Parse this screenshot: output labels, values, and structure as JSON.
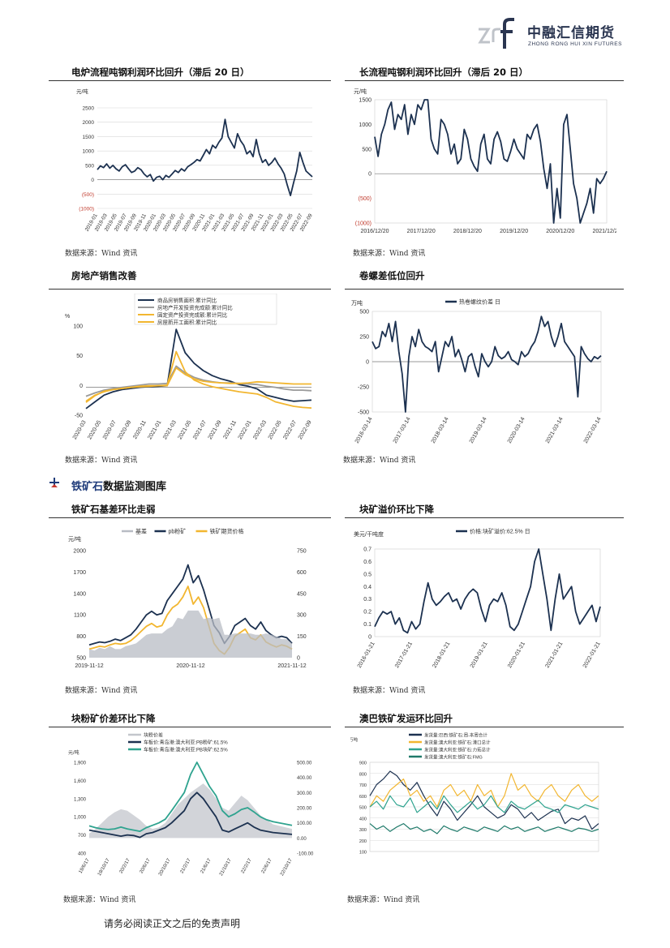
{
  "brand": {
    "name_cn": "中融汇信期货",
    "name_en": "ZHONG RONG HUI XIN FUTURES"
  },
  "section": {
    "title_a": "铁矿石",
    "title_b": "数据监测图库"
  },
  "source_label": "数据来源：Wind 资讯",
  "footer": "请务必阅读正文之后的免责声明",
  "charts": [
    {
      "id": "c1",
      "title": "电炉流程吨钢利润环比回升（滞后 20 日）"
    },
    {
      "id": "c2",
      "title": "长流程吨钢利润环比回升（滞后 20 日）"
    },
    {
      "id": "c3",
      "title": "房地产销售改善"
    },
    {
      "id": "c4",
      "title": "卷螺差低位回升"
    },
    {
      "id": "c5",
      "title": "铁矿石基差环比走弱"
    },
    {
      "id": "c6",
      "title": "块矿溢价环比下降"
    },
    {
      "id": "c7",
      "title": "块粉矿价差环比下降"
    },
    {
      "id": "c8",
      "title": "澳巴铁矿发运环比回升"
    }
  ],
  "chart_data": [
    {
      "id": "c1",
      "type": "line",
      "ylabel": "元/吨",
      "yticks": [
        "2500",
        "2000",
        "1500",
        "1000",
        "500",
        "0",
        "(500)",
        "(1000)"
      ],
      "ylim": [
        -1000,
        2500
      ],
      "xticks": [
        "2019-01",
        "2019-03",
        "2019-05",
        "2019-07",
        "2019-09",
        "2019-11",
        "2020-01",
        "2020-03",
        "2020-05",
        "2020-07",
        "2020-09",
        "2020-11",
        "2021-01",
        "2021-03",
        "2021-05",
        "2021-07",
        "2021-09",
        "2021-11",
        "2022-01",
        "2022-03",
        "2022-05",
        "2022-07",
        "2022-09"
      ],
      "series": [
        {
          "color": "#1c3150",
          "values": [
            350,
            480,
            420,
            550,
            400,
            500,
            380,
            300,
            450,
            520,
            380,
            250,
            300,
            420,
            350,
            200,
            100,
            180,
            -50,
            80,
            120,
            0,
            150,
            80,
            200,
            320,
            250,
            380,
            300,
            450,
            520,
            600,
            700,
            650,
            850,
            1050,
            900,
            1200,
            1100,
            1300,
            1450,
            2100,
            1500,
            1300,
            1100,
            1600,
            1350,
            1200,
            900,
            1000,
            800,
            1400,
            900,
            600,
            700,
            500,
            600,
            750,
            550,
            400,
            200,
            -200,
            -550,
            -100,
            300,
            950,
            600,
            300,
            200,
            100
          ]
        }
      ]
    },
    {
      "id": "c2",
      "type": "line",
      "ylabel": "元/吨",
      "yticks": [
        "1500",
        "1000",
        "500",
        "0",
        "(500)",
        "(1000)"
      ],
      "ylim": [
        -1000,
        1500
      ],
      "xticks": [
        "2016/12/20",
        "2017/12/20",
        "2018/12/20",
        "2019/12/20",
        "2020/12/20",
        "2021/12/20"
      ],
      "series": [
        {
          "color": "#1c3150",
          "values": [
            750,
            350,
            800,
            1000,
            1300,
            1450,
            900,
            1200,
            1100,
            1400,
            800,
            1200,
            1000,
            1400,
            1300,
            1500,
            1500,
            700,
            500,
            400,
            1100,
            1000,
            800,
            400,
            600,
            200,
            300,
            900,
            700,
            300,
            150,
            50,
            600,
            800,
            300,
            200,
            700,
            850,
            650,
            300,
            250,
            450,
            700,
            500,
            400,
            300,
            800,
            700,
            900,
            1000,
            650,
            100,
            -300,
            200,
            -1000,
            -300,
            -900,
            1000,
            1200,
            500,
            -200,
            -500,
            -1000,
            -800,
            -600,
            -300,
            -800,
            -100,
            -200,
            -100,
            50
          ]
        }
      ]
    },
    {
      "id": "c3",
      "type": "line",
      "ylabel": "%",
      "yticks": [
        "100",
        "50",
        "0",
        "-50"
      ],
      "ylim": [
        -50,
        110
      ],
      "xticks": [
        "2020-03",
        "2020-05",
        "2020-07",
        "2020-09",
        "2020-11",
        "2021-01",
        "2021-03",
        "2021-05",
        "2021-07",
        "2021-09",
        "2021-11",
        "2022-01",
        "2022-03",
        "2022-05",
        "2022-07",
        "2022-09"
      ],
      "series": [
        {
          "name": "商品房销售面积:累计同比",
          "color": "#1c3150",
          "values": [
            -38,
            -26,
            -14,
            -8,
            -4,
            -2,
            0,
            1,
            2,
            3,
            104,
            62,
            43,
            30,
            21,
            15,
            11,
            5,
            2,
            -3,
            -14,
            -18,
            -22,
            -25,
            -24,
            -23
          ]
        },
        {
          "name": "房地产开发投资完成额:累计同比",
          "color": "#9a9a9a",
          "values": [
            -16,
            -10,
            -5,
            -2,
            0,
            2,
            4,
            6,
            6,
            7,
            38,
            26,
            18,
            13,
            10,
            8,
            8,
            7,
            6,
            5,
            2,
            0,
            -3,
            -5,
            -5,
            -6
          ]
        },
        {
          "name": "固定资产投资完成额:累计同比",
          "color": "#f2b630",
          "values": [
            -25,
            -14,
            -8,
            -4,
            -2,
            0,
            1,
            2,
            3,
            3,
            35,
            23,
            15,
            11,
            9,
            8,
            7,
            7,
            8,
            10,
            9,
            8,
            7,
            6,
            6,
            6
          ]
        },
        {
          "name": "房屋新开工面积:累计同比",
          "color": "#f2b630",
          "values": [
            -27,
            -15,
            -7,
            -4,
            -2,
            0,
            2,
            3,
            3,
            4,
            64,
            28,
            13,
            6,
            1,
            -2,
            -5,
            -8,
            -10,
            -12,
            -18,
            -26,
            -30,
            -34,
            -36,
            -37
          ]
        }
      ]
    },
    {
      "id": "c4",
      "type": "line",
      "ylabel": "万吨",
      "legend": [
        "热卷螺纹价差 日"
      ],
      "yticks": [
        "500",
        "250",
        "0",
        "-250",
        "-500"
      ],
      "ylim": [
        -500,
        500
      ],
      "xticks": [
        "2016-03-14",
        "2017-03-14",
        "2018-03-14",
        "2019-03-14",
        "2020-03-14",
        "2021-03-14",
        "2022-03-14"
      ],
      "series": [
        {
          "name": "热卷螺纹价差 日",
          "color": "#1c3150",
          "values": [
            200,
            130,
            150,
            300,
            250,
            380,
            200,
            400,
            100,
            -120,
            -500,
            50,
            250,
            150,
            320,
            200,
            150,
            130,
            100,
            200,
            -100,
            50,
            200,
            150,
            250,
            50,
            120,
            20,
            -100,
            50,
            80,
            -50,
            -150,
            80,
            0,
            -50,
            0,
            150,
            60,
            30,
            50,
            100,
            20,
            0,
            -30,
            100,
            50,
            80,
            150,
            200,
            300,
            450,
            350,
            400,
            250,
            150,
            250,
            380,
            200,
            150,
            100,
            50,
            -350,
            150,
            80,
            30,
            0,
            50,
            30,
            60
          ]
        }
      ]
    },
    {
      "id": "c5",
      "type": "line",
      "ylabel": "元/吨",
      "legend": [
        "基差",
        "pb粉矿",
        "铁矿期货价格"
      ],
      "yticks_left": [
        "2000",
        "1700",
        "1400",
        "1100",
        "800",
        "500"
      ],
      "ylim_left": [
        500,
        2000
      ],
      "yticks_right": [
        "750",
        "600",
        "450",
        "300",
        "150",
        "0"
      ],
      "ylim_right": [
        0,
        750
      ],
      "xticks": [
        "2019-11-12",
        "2020-11-12",
        "2021-11-12"
      ],
      "series": [
        {
          "name": "pb粉矿",
          "color": "#1c3150",
          "values": [
            680,
            700,
            720,
            710,
            730,
            760,
            740,
            780,
            820,
            900,
            1000,
            1100,
            1150,
            1100,
            1120,
            1300,
            1400,
            1500,
            1600,
            1800,
            1550,
            1650,
            1450,
            1200,
            950,
            850,
            700,
            800,
            950,
            1000,
            1050,
            950,
            900,
            1000,
            880,
            820,
            780,
            800,
            780,
            700
          ]
        },
        {
          "name": "铁矿期货价格",
          "color": "#f2b630",
          "values": [
            620,
            640,
            660,
            650,
            680,
            700,
            690,
            700,
            740,
            800,
            870,
            940,
            980,
            930,
            950,
            1100,
            1200,
            1250,
            1350,
            1500,
            1250,
            1350,
            1200,
            950,
            700,
            600,
            550,
            650,
            800,
            850,
            900,
            780,
            750,
            820,
            720,
            680,
            650,
            680,
            660,
            620
          ]
        },
        {
          "name": "基差",
          "color": "#b8bcc4",
          "values": [
            60,
            50,
            70,
            60,
            80,
            60,
            60,
            80,
            90,
            100,
            130,
            160,
            170,
            170,
            170,
            200,
            220,
            280,
            270,
            330,
            330,
            330,
            270,
            280,
            270,
            280,
            160,
            160,
            170,
            170,
            170,
            170,
            160,
            160,
            170,
            160,
            150,
            130,
            130,
            100
          ]
        }
      ]
    },
    {
      "id": "c6",
      "type": "line",
      "ylabel": "美元/干吨度",
      "legend": [
        "价格:块矿溢价:62.5% 日"
      ],
      "yticks": [
        "0.7",
        "0.6",
        "0.5",
        "0.4",
        "0.3",
        "0.2",
        "0.1",
        "0"
      ],
      "ylim": [
        0,
        0.7
      ],
      "xticks": [
        "2016-01-21",
        "2017-01-21",
        "2018-01-21",
        "2019-01-21",
        "2020-01-21",
        "2021-01-21",
        "2022-01-21"
      ],
      "series": [
        {
          "name": "价格:块矿溢价:62.5% 日",
          "color": "#1c3150",
          "values": [
            0.08,
            0.15,
            0.2,
            0.18,
            0.2,
            0.1,
            0.15,
            0.05,
            0.03,
            0.12,
            0.06,
            0.1,
            0.28,
            0.43,
            0.3,
            0.25,
            0.28,
            0.32,
            0.35,
            0.28,
            0.3,
            0.22,
            0.3,
            0.35,
            0.38,
            0.35,
            0.22,
            0.12,
            0.25,
            0.3,
            0.28,
            0.35,
            0.25,
            0.08,
            0.05,
            0.1,
            0.2,
            0.3,
            0.4,
            0.6,
            0.7,
            0.5,
            0.3,
            0.05,
            0.3,
            0.5,
            0.3,
            0.35,
            0.4,
            0.2,
            0.1,
            0.15,
            0.2,
            0.25,
            0.12,
            0.24
          ]
        }
      ]
    },
    {
      "id": "c7",
      "type": "line",
      "ylabel": "元/吨",
      "legend": [
        "块粉价差",
        "车板价:青岛港:澳大利亚:PB粉矿:61.5%",
        "车板价:青岛港:澳大利亚:PB块矿:62.5%"
      ],
      "yticks_left": [
        "1,900",
        "1,600",
        "1,300",
        "1,000",
        "700",
        "400"
      ],
      "ylim_left": [
        400,
        1900
      ],
      "yticks_right": [
        "500.00",
        "400.00",
        "300.00",
        "200.00",
        "100.00",
        "0.00",
        "-100.00"
      ],
      "ylim_right": [
        -100,
        500
      ],
      "xticks": [
        "19/6/17",
        "19/10/17",
        "20/2/17",
        "20/6/17",
        "20/10/17",
        "21/2/17",
        "21/6/17",
        "21/10/17",
        "22/2/17",
        "22/6/17",
        "22/10/17"
      ],
      "series": [
        {
          "name": "块粉价差",
          "color": "#c3c6cc",
          "values": [
            30,
            60,
            100,
            140,
            170,
            190,
            180,
            150,
            120,
            80,
            60,
            70,
            100,
            160,
            220,
            260,
            300,
            330,
            360,
            320,
            260,
            200,
            180,
            230,
            280,
            250,
            200,
            150,
            120,
            90,
            80,
            70,
            60
          ]
        },
        {
          "name": "车板价:青岛港:澳大利亚:PB粉矿:61.5%",
          "color": "#1c3150",
          "values": [
            780,
            760,
            740,
            720,
            700,
            680,
            700,
            690,
            660,
            720,
            740,
            780,
            820,
            900,
            1000,
            1100,
            1300,
            1400,
            1300,
            1150,
            1000,
            780,
            750,
            800,
            850,
            900,
            830,
            780,
            760,
            740,
            730,
            720,
            710
          ]
        },
        {
          "name": "车板价:青岛港:澳大利亚:PB块矿:62.5%",
          "color": "#2fa38f",
          "values": [
            850,
            820,
            800,
            790,
            800,
            830,
            800,
            780,
            760,
            820,
            860,
            900,
            960,
            1100,
            1250,
            1400,
            1700,
            1900,
            1700,
            1500,
            1350,
            1100,
            1000,
            1050,
            1120,
            1150,
            1080,
            1000,
            950,
            920,
            900,
            880,
            860
          ]
        }
      ]
    },
    {
      "id": "c8",
      "type": "line",
      "ylabel": "万吨",
      "legend": [
        "发货量:巴西:铁矿石:周-本周合计",
        "发货量:澳大利亚:铁矿石:港口总计",
        "发货量:澳大利亚:铁矿石:力拓总计",
        "发货量:澳大利亚:铁矿石:FMG"
      ],
      "yticks": [
        "900",
        "800",
        "700",
        "600",
        "500",
        "400",
        "300",
        "200",
        "100"
      ],
      "ylim": [
        100,
        900
      ],
      "series": [
        {
          "name": "发货量:巴西:铁矿石:周-本周合计",
          "color": "#1c3150",
          "values": [
            600,
            700,
            750,
            820,
            780,
            700,
            650,
            720,
            600,
            500,
            420,
            550,
            480,
            380,
            450,
            520,
            600,
            500,
            450,
            400,
            430,
            520,
            480,
            400,
            450,
            380,
            420,
            460,
            480,
            350,
            400,
            380,
            420,
            300,
            350
          ]
        },
        {
          "name": "发货量:澳大利亚:铁矿石:港口总计",
          "color": "#f2b630",
          "values": [
            500,
            600,
            550,
            650,
            700,
            750,
            600,
            650,
            550,
            600,
            500,
            650,
            700,
            600,
            650,
            550,
            700,
            600,
            650,
            500,
            600,
            800,
            650,
            700,
            600,
            550,
            650,
            700,
            600,
            550,
            650,
            700,
            600,
            550,
            600
          ]
        },
        {
          "name": "发货量:澳大利亚:铁矿石:力拓总计",
          "color": "#2fa38f",
          "values": [
            500,
            550,
            480,
            600,
            520,
            500,
            580,
            450,
            500,
            550,
            480,
            600,
            520,
            450,
            500,
            550,
            480,
            520,
            600,
            500,
            450,
            550,
            500,
            480,
            520,
            560,
            500,
            480,
            450,
            520,
            500,
            480,
            520,
            500,
            480
          ]
        },
        {
          "name": "发货量:澳大利亚:铁矿石:FMG",
          "color": "#1f7a6a",
          "values": [
            350,
            300,
            330,
            280,
            320,
            350,
            300,
            320,
            280,
            300,
            260,
            330,
            300,
            280,
            320,
            300,
            280,
            320,
            300,
            280,
            330,
            300,
            320,
            280,
            300,
            320,
            280,
            300,
            320,
            300,
            280,
            310,
            300,
            280,
            300
          ]
        }
      ]
    }
  ]
}
